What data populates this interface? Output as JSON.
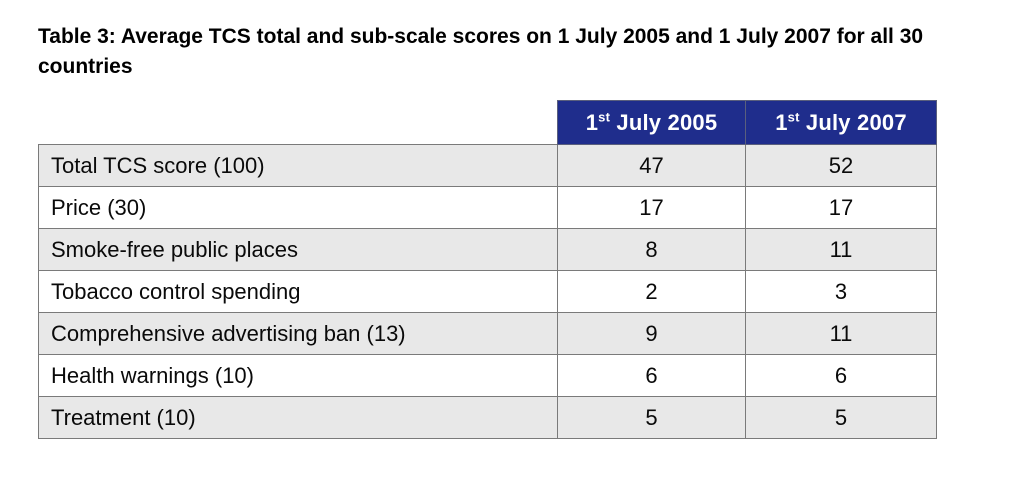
{
  "title": {
    "line1": "Table 3: Average TCS total and sub-scale scores on 1 July 2005 and 1 July 2007 for all 30",
    "line2": "countries"
  },
  "colors": {
    "header_blue": "#1f2d8c",
    "row_gray": "#e8e8e8",
    "border_gray": "#7a7a7a",
    "header_text": "#ffffff"
  },
  "table": {
    "header": {
      "col2005": {
        "num": "1",
        "sup": "st",
        "rest": " July 2005"
      },
      "col2007": {
        "num": "1",
        "sup": "st",
        "rest": " July 2007"
      }
    },
    "rows": [
      {
        "label": "Total TCS score (100)",
        "v2005": "47",
        "v2007": "52"
      },
      {
        "label": "Price (30)",
        "v2005": "17",
        "v2007": "17"
      },
      {
        "label": "Smoke-free public places",
        "v2005": "8",
        "v2007": "11"
      },
      {
        "label": "Tobacco control spending",
        "v2005": "2",
        "v2007": "3"
      },
      {
        "label": "Comprehensive advertising ban (13)",
        "v2005": "9",
        "v2007": "11"
      },
      {
        "label": "Health warnings (10)",
        "v2005": "6",
        "v2007": "6"
      },
      {
        "label": "Treatment (10)",
        "v2005": "5",
        "v2007": "5"
      }
    ]
  },
  "chart_data": {
    "type": "table",
    "title": "Table 3: Average TCS total and sub-scale scores on 1 July 2005 and 1 July 2007 for all 30 countries",
    "columns": [
      "",
      "1st July 2005",
      "1st July 2007"
    ],
    "rows": [
      [
        "Total TCS score (100)",
        47,
        52
      ],
      [
        "Price (30)",
        17,
        17
      ],
      [
        "Smoke-free public places",
        8,
        11
      ],
      [
        "Tobacco control spending",
        2,
        3
      ],
      [
        "Comprehensive advertising ban (13)",
        9,
        11
      ],
      [
        "Health warnings (10)",
        6,
        6
      ],
      [
        "Treatment (10)",
        5,
        5
      ]
    ]
  }
}
